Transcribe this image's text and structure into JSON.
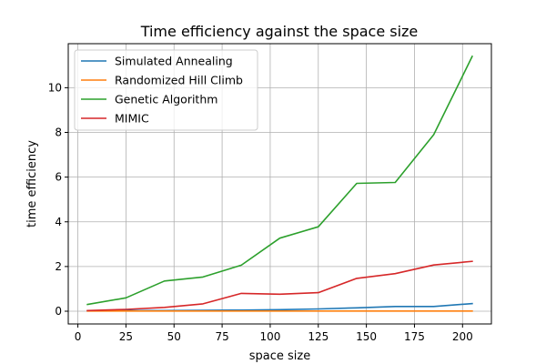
{
  "chart_data": {
    "type": "line",
    "title": "Time efficiency against the space size",
    "xlabel": "space size",
    "ylabel": "time efficiency",
    "x": [
      5,
      25,
      45,
      65,
      85,
      105,
      125,
      145,
      165,
      185,
      205
    ],
    "xlim": [
      -5,
      215
    ],
    "ylim": [
      -0.57,
      11.97
    ],
    "xticks": [
      0,
      25,
      50,
      75,
      100,
      125,
      150,
      175,
      200
    ],
    "yticks": [
      0,
      2,
      4,
      6,
      8,
      10
    ],
    "grid": true,
    "legend_position": "top-left",
    "series": [
      {
        "name": "Simulated Annealing",
        "color": "#1f77b4",
        "values": [
          0.02,
          0.03,
          0.03,
          0.04,
          0.05,
          0.07,
          0.1,
          0.15,
          0.21,
          0.21,
          0.34
        ]
      },
      {
        "name": "Randomized Hill Climb",
        "color": "#ff7f0e",
        "values": [
          0.01,
          0.01,
          0.01,
          0.01,
          0.01,
          0.01,
          0.01,
          0.01,
          0.01,
          0.01,
          0.01
        ]
      },
      {
        "name": "Genetic Algorithm",
        "color": "#2ca02c",
        "values": [
          0.3,
          0.6,
          1.35,
          1.53,
          2.06,
          3.27,
          3.78,
          5.72,
          5.76,
          7.9,
          11.4
        ]
      },
      {
        "name": "MIMIC",
        "color": "#d62728",
        "values": [
          0.03,
          0.08,
          0.17,
          0.33,
          0.8,
          0.76,
          0.83,
          1.47,
          1.68,
          2.07,
          2.23
        ]
      }
    ]
  }
}
